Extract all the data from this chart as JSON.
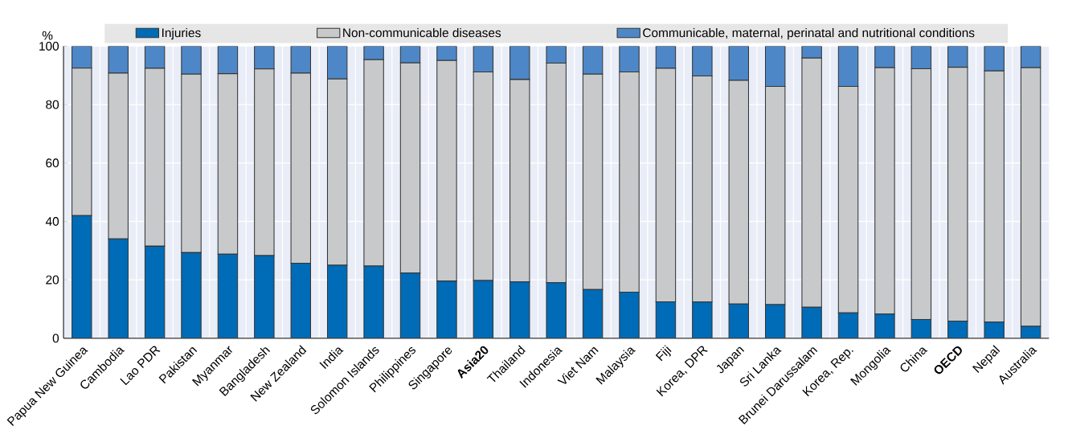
{
  "chart_data": {
    "type": "bar",
    "stacked": true,
    "ylabel": "%",
    "categories": [
      "Papua New Guinea",
      "Cambodia",
      "Lao PDR",
      "Pakistan",
      "Myanmar",
      "Bangladesh",
      "New Zealand",
      "India",
      "Solomon Islands",
      "Philippines",
      "Singapore",
      "**Asia20**",
      "Thailand",
      "Indonesia",
      "Viet Nam",
      "Malaysia",
      "Fiji",
      "Korea, DPR",
      "Japan",
      "Sri Lanka",
      "Brunei Darussalam",
      "Korea, Rep.",
      "Mongolia",
      "China",
      "**OECD**",
      "Nepal",
      "Australia"
    ],
    "series": [
      {
        "name": "Injuries",
        "color": "#006bb6",
        "values": [
          42,
          34,
          31.5,
          29.3,
          28.8,
          28.3,
          25.7,
          25,
          24.7,
          22.3,
          19.6,
          19.8,
          19.3,
          19,
          16.7,
          15.8,
          12.5,
          12.4,
          11.7,
          11.5,
          10.6,
          8.7,
          8.3,
          6.4,
          5.9,
          5.5,
          4.1
        ]
      },
      {
        "name": "Non-communicable diseases",
        "color": "#c8c9cb",
        "values": [
          50.5,
          56.8,
          60.9,
          61.1,
          61.8,
          63.9,
          65.1,
          63.8,
          70.7,
          72.0,
          75.5,
          71.4,
          69.3,
          75.2,
          73.7,
          75.4,
          79.9,
          77.4,
          76.6,
          74.7,
          85.3,
          77.5,
          84.3,
          85.9,
          86.9,
          86.0,
          88.5
        ]
      },
      {
        "name": "Communicable, maternal, perinatal and nutritional conditions",
        "color": "#4e87c7",
        "values": [
          7.5,
          9.2,
          7.6,
          9.6,
          9.4,
          7.8,
          9.2,
          11.2,
          4.6,
          5.7,
          4.9,
          8.8,
          11.4,
          5.8,
          9.6,
          8.8,
          7.6,
          10.2,
          11.7,
          13.8,
          4.1,
          13.8,
          7.4,
          7.7,
          7.2,
          8.5,
          7.4
        ]
      }
    ],
    "ylim": [
      0,
      100
    ],
    "yticks": [
      0,
      20,
      40,
      60,
      80,
      100
    ],
    "grid": true,
    "legend": "top"
  }
}
